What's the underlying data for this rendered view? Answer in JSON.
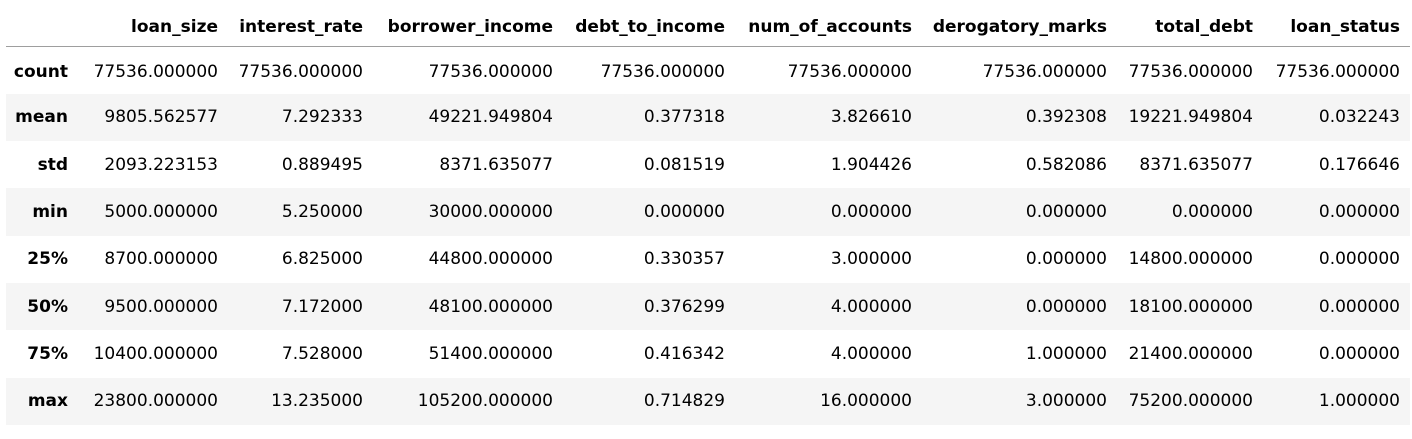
{
  "table": {
    "index_header": "",
    "columns": [
      "loan_size",
      "interest_rate",
      "borrower_income",
      "debt_to_income",
      "num_of_accounts",
      "derogatory_marks",
      "total_debt",
      "loan_status"
    ],
    "rows": [
      {
        "label": "count",
        "values": [
          "77536.000000",
          "77536.000000",
          "77536.000000",
          "77536.000000",
          "77536.000000",
          "77536.000000",
          "77536.000000",
          "77536.000000"
        ]
      },
      {
        "label": "mean",
        "values": [
          "9805.562577",
          "7.292333",
          "49221.949804",
          "0.377318",
          "3.826610",
          "0.392308",
          "19221.949804",
          "0.032243"
        ]
      },
      {
        "label": "std",
        "values": [
          "2093.223153",
          "0.889495",
          "8371.635077",
          "0.081519",
          "1.904426",
          "0.582086",
          "8371.635077",
          "0.176646"
        ]
      },
      {
        "label": "min",
        "values": [
          "5000.000000",
          "5.250000",
          "30000.000000",
          "0.000000",
          "0.000000",
          "0.000000",
          "0.000000",
          "0.000000"
        ]
      },
      {
        "label": "25%",
        "values": [
          "8700.000000",
          "6.825000",
          "44800.000000",
          "0.330357",
          "3.000000",
          "0.000000",
          "14800.000000",
          "0.000000"
        ]
      },
      {
        "label": "50%",
        "values": [
          "9500.000000",
          "7.172000",
          "48100.000000",
          "0.376299",
          "4.000000",
          "0.000000",
          "18100.000000",
          "0.000000"
        ]
      },
      {
        "label": "75%",
        "values": [
          "10400.000000",
          "7.528000",
          "51400.000000",
          "0.416342",
          "4.000000",
          "1.000000",
          "21400.000000",
          "0.000000"
        ]
      },
      {
        "label": "max",
        "values": [
          "23800.000000",
          "13.235000",
          "105200.000000",
          "0.714829",
          "16.000000",
          "3.000000",
          "75200.000000",
          "1.000000"
        ]
      }
    ]
  },
  "colors": {
    "header_rule": "#9e9e9e",
    "stripe": "#f5f5f5",
    "text": "#000000"
  }
}
